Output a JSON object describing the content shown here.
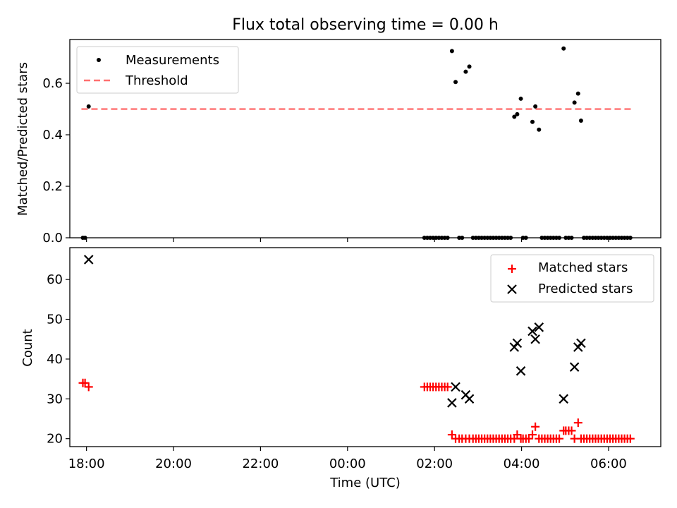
{
  "figure": {
    "title": "Flux total observing time = 0.00 h",
    "xlabel": "Time (UTC)"
  },
  "chart_data": [
    {
      "type": "scatter",
      "ylabel": "Matched/Predicted stars",
      "xlim": [
        "17:37",
        "07:12"
      ],
      "ylim": [
        0,
        0.77
      ],
      "yticks": [
        0.0,
        0.2,
        0.4,
        0.6
      ],
      "ytick_labels": [
        "0.0",
        "0.2",
        "0.4",
        "0.6"
      ],
      "xticks": [
        "18:00",
        "20:00",
        "22:00",
        "00:00",
        "02:00",
        "04:00",
        "06:00"
      ],
      "grid": false,
      "legend": {
        "position": "upper left",
        "entries": [
          "Measurements",
          "Threshold"
        ]
      },
      "threshold": {
        "name": "Threshold",
        "value": 0.5,
        "x_start": "17:53",
        "x_end": "06:32",
        "color": "#ff7070",
        "style": "dashed"
      },
      "series": [
        {
          "name": "Measurements",
          "marker": "dot",
          "color": "#000000",
          "points": [
            [
              "17:55",
              0.0
            ],
            [
              "17:58",
              0.0
            ],
            [
              "18:03",
              0.51
            ],
            [
              "01:46",
              0.0
            ],
            [
              "01:50",
              0.0
            ],
            [
              "01:54",
              0.0
            ],
            [
              "01:58",
              0.0
            ],
            [
              "02:02",
              0.0
            ],
            [
              "02:06",
              0.0
            ],
            [
              "02:10",
              0.0
            ],
            [
              "02:14",
              0.0
            ],
            [
              "02:18",
              0.0
            ],
            [
              "02:24",
              0.725
            ],
            [
              "02:29",
              0.605
            ],
            [
              "02:34",
              0.0
            ],
            [
              "02:38",
              0.0
            ],
            [
              "02:43",
              0.645
            ],
            [
              "02:48",
              0.665
            ],
            [
              "02:53",
              0.0
            ],
            [
              "02:57",
              0.0
            ],
            [
              "03:01",
              0.0
            ],
            [
              "03:05",
              0.0
            ],
            [
              "03:09",
              0.0
            ],
            [
              "03:13",
              0.0
            ],
            [
              "03:17",
              0.0
            ],
            [
              "03:21",
              0.0
            ],
            [
              "03:25",
              0.0
            ],
            [
              "03:29",
              0.0
            ],
            [
              "03:33",
              0.0
            ],
            [
              "03:37",
              0.0
            ],
            [
              "03:41",
              0.0
            ],
            [
              "03:45",
              0.0
            ],
            [
              "03:50",
              0.47
            ],
            [
              "03:54",
              0.48
            ],
            [
              "03:59",
              0.54
            ],
            [
              "04:02",
              0.0
            ],
            [
              "04:06",
              0.0
            ],
            [
              "04:15",
              0.45
            ],
            [
              "04:19",
              0.51
            ],
            [
              "04:24",
              0.42
            ],
            [
              "04:28",
              0.0
            ],
            [
              "04:32",
              0.0
            ],
            [
              "04:36",
              0.0
            ],
            [
              "04:40",
              0.0
            ],
            [
              "04:44",
              0.0
            ],
            [
              "04:48",
              0.0
            ],
            [
              "04:52",
              0.0
            ],
            [
              "04:58",
              0.735
            ],
            [
              "05:01",
              0.0
            ],
            [
              "05:05",
              0.0
            ],
            [
              "05:09",
              0.0
            ],
            [
              "05:13",
              0.525
            ],
            [
              "05:18",
              0.56
            ],
            [
              "05:22",
              0.455
            ],
            [
              "05:26",
              0.0
            ],
            [
              "05:30",
              0.0
            ],
            [
              "05:34",
              0.0
            ],
            [
              "05:38",
              0.0
            ],
            [
              "05:42",
              0.0
            ],
            [
              "05:46",
              0.0
            ],
            [
              "05:50",
              0.0
            ],
            [
              "05:54",
              0.0
            ],
            [
              "05:58",
              0.0
            ],
            [
              "06:02",
              0.0
            ],
            [
              "06:06",
              0.0
            ],
            [
              "06:10",
              0.0
            ],
            [
              "06:14",
              0.0
            ],
            [
              "06:18",
              0.0
            ],
            [
              "06:22",
              0.0
            ],
            [
              "06:26",
              0.0
            ],
            [
              "06:30",
              0.0
            ]
          ]
        }
      ]
    },
    {
      "type": "scatter",
      "ylabel": "Count",
      "xlabel": "Time (UTC)",
      "xlim": [
        "17:37",
        "07:12"
      ],
      "ylim": [
        18,
        68
      ],
      "yticks": [
        20,
        30,
        40,
        50,
        60
      ],
      "ytick_labels": [
        "20",
        "30",
        "40",
        "50",
        "60"
      ],
      "xticks": [
        "18:00",
        "20:00",
        "22:00",
        "00:00",
        "02:00",
        "04:00",
        "06:00"
      ],
      "grid": false,
      "legend": {
        "position": "upper right",
        "entries": [
          "Matched stars",
          "Predicted stars"
        ]
      },
      "series": [
        {
          "name": "Matched stars",
          "marker": "plus",
          "color": "#ff0000",
          "points": [
            [
              "17:55",
              34
            ],
            [
              "17:58",
              34
            ],
            [
              "18:03",
              33
            ],
            [
              "01:46",
              33
            ],
            [
              "01:50",
              33
            ],
            [
              "01:54",
              33
            ],
            [
              "01:58",
              33
            ],
            [
              "02:02",
              33
            ],
            [
              "02:06",
              33
            ],
            [
              "02:10",
              33
            ],
            [
              "02:14",
              33
            ],
            [
              "02:18",
              33
            ],
            [
              "02:24",
              21
            ],
            [
              "02:29",
              20
            ],
            [
              "02:34",
              20
            ],
            [
              "02:38",
              20
            ],
            [
              "02:43",
              20
            ],
            [
              "02:48",
              20
            ],
            [
              "02:53",
              20
            ],
            [
              "02:57",
              20
            ],
            [
              "03:01",
              20
            ],
            [
              "03:05",
              20
            ],
            [
              "03:09",
              20
            ],
            [
              "03:13",
              20
            ],
            [
              "03:17",
              20
            ],
            [
              "03:21",
              20
            ],
            [
              "03:25",
              20
            ],
            [
              "03:29",
              20
            ],
            [
              "03:33",
              20
            ],
            [
              "03:37",
              20
            ],
            [
              "03:41",
              20
            ],
            [
              "03:45",
              20
            ],
            [
              "03:50",
              20
            ],
            [
              "03:54",
              21
            ],
            [
              "03:59",
              20
            ],
            [
              "04:02",
              20
            ],
            [
              "04:06",
              20
            ],
            [
              "04:10",
              20
            ],
            [
              "04:15",
              21
            ],
            [
              "04:19",
              23
            ],
            [
              "04:24",
              20
            ],
            [
              "04:28",
              20
            ],
            [
              "04:32",
              20
            ],
            [
              "04:36",
              20
            ],
            [
              "04:40",
              20
            ],
            [
              "04:44",
              20
            ],
            [
              "04:48",
              20
            ],
            [
              "04:52",
              20
            ],
            [
              "04:58",
              22
            ],
            [
              "05:01",
              22
            ],
            [
              "05:05",
              22
            ],
            [
              "05:09",
              22
            ],
            [
              "05:13",
              20
            ],
            [
              "05:18",
              24
            ],
            [
              "05:22",
              20
            ],
            [
              "05:26",
              20
            ],
            [
              "05:30",
              20
            ],
            [
              "05:34",
              20
            ],
            [
              "05:38",
              20
            ],
            [
              "05:42",
              20
            ],
            [
              "05:46",
              20
            ],
            [
              "05:50",
              20
            ],
            [
              "05:54",
              20
            ],
            [
              "05:58",
              20
            ],
            [
              "06:02",
              20
            ],
            [
              "06:06",
              20
            ],
            [
              "06:10",
              20
            ],
            [
              "06:14",
              20
            ],
            [
              "06:18",
              20
            ],
            [
              "06:22",
              20
            ],
            [
              "06:26",
              20
            ],
            [
              "06:30",
              20
            ]
          ]
        },
        {
          "name": "Predicted stars",
          "marker": "x",
          "color": "#000000",
          "points": [
            [
              "18:03",
              65
            ],
            [
              "02:24",
              29
            ],
            [
              "02:29",
              33
            ],
            [
              "02:43",
              31
            ],
            [
              "02:48",
              30
            ],
            [
              "03:50",
              43
            ],
            [
              "03:54",
              44
            ],
            [
              "03:59",
              37
            ],
            [
              "04:15",
              47
            ],
            [
              "04:19",
              45
            ],
            [
              "04:24",
              48
            ],
            [
              "04:58",
              30
            ],
            [
              "05:13",
              38
            ],
            [
              "05:18",
              43
            ],
            [
              "05:22",
              44
            ]
          ]
        }
      ]
    }
  ]
}
